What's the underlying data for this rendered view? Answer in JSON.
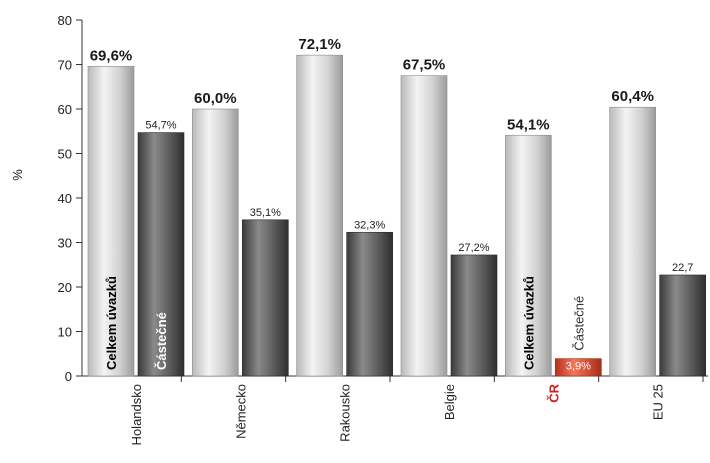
{
  "chart_data": {
    "type": "bar",
    "ylabel": "%",
    "ylim": [
      0,
      80
    ],
    "yticks": [
      "0",
      "10",
      "20",
      "30",
      "40",
      "50",
      "60",
      "70",
      "80"
    ],
    "categories": [
      "Holandsko",
      "Německo",
      "Rakousko",
      "Belgie",
      "ČR",
      "EU 25"
    ],
    "highlight_category": "ČR",
    "series": [
      {
        "name": "Celkem úvazků",
        "values": [
          69.6,
          60.0,
          72.1,
          67.5,
          54.1,
          60.4
        ],
        "labels": [
          "69,6%",
          "60,0%",
          "72,1%",
          "67,5%",
          "54,1%",
          "60,4%"
        ],
        "color": "#d8d8d8"
      },
      {
        "name": "Částečné",
        "values": [
          54.7,
          35.1,
          32.3,
          27.2,
          3.9,
          22.7
        ],
        "labels": [
          "54,7%",
          "35,1%",
          "32,3%",
          "27,2%",
          "3,9%",
          "22,7"
        ],
        "color": "#555555",
        "highlight_color": "#e0442a"
      }
    ],
    "in_bar_labels": {
      "Holandsko": [
        "Celkem úvazků",
        "Částečné"
      ],
      "ČR": [
        "Celkem úvazků",
        "Částečné"
      ]
    },
    "grid": false
  }
}
